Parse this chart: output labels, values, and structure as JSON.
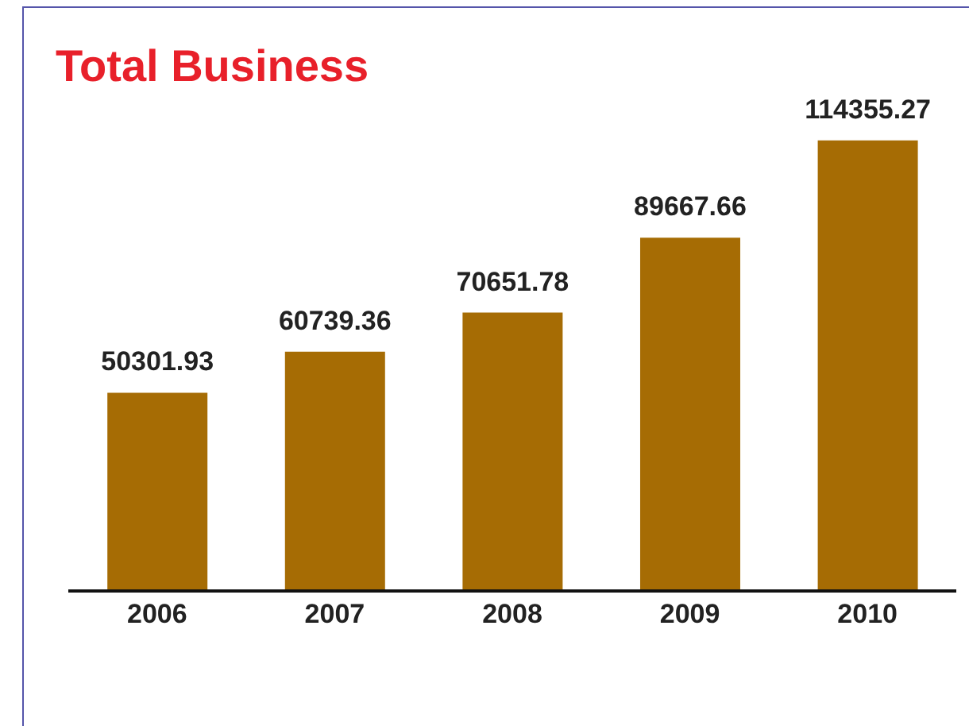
{
  "chart_data": {
    "type": "bar",
    "title": "Total Business",
    "categories": [
      "2006",
      "2007",
      "2008",
      "2009",
      "2010"
    ],
    "values": [
      50301.93,
      60739.36,
      70651.78,
      89667.66,
      114355.27
    ],
    "color": "#a66c04",
    "data_labels": true
  }
}
